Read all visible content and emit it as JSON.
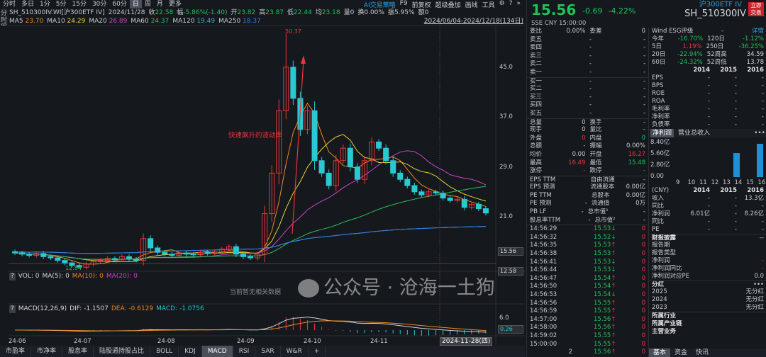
{
  "topbar": {
    "periods": [
      "分时",
      "多日",
      "1分",
      "5分",
      "15分",
      "30分",
      "60分",
      "日",
      "周",
      "月",
      "更多"
    ],
    "active": "日",
    "tools": [
      "AI交易策略",
      "F9",
      "前复权",
      "超级叠加",
      "画线",
      "工具"
    ]
  },
  "sidebar": [
    "分时图",
    "K线图",
    "TICK",
    "成交明细",
    "分价表",
    "深度资料",
    "超级复盘"
  ],
  "sidebar_active": "K线图",
  "info": {
    "symbol": "SH_510300IV.WI[沪300ETF IV]",
    "date": "2024/11/28",
    "close_label": "收",
    "close": "22.58",
    "chg_label": "幅",
    "chg": "-5.86%(-1.40)",
    "open_label": "开",
    "open": "23.82",
    "high_label": "高",
    "high": "23.87",
    "low_label": "低",
    "low": "22.44",
    "avg_label": "均",
    "avg": "23.18",
    "vol_label": "量",
    "vol": "0",
    "turn_label": "换",
    "turn": "0.00%",
    "amp_label": "振",
    "amp": "5.95%",
    "amt_label": "额",
    "amt": "0"
  },
  "ma": [
    {
      "label": "MA5",
      "value": "23.70",
      "color": "#f08a24"
    },
    {
      "label": "MA10",
      "value": "24.29",
      "color": "#e8d23a"
    },
    {
      "label": "MA20",
      "value": "26.89",
      "color": "#c848c8"
    },
    {
      "label": "MA60",
      "value": "24.37",
      "color": "#2dbd5a"
    },
    {
      "label": "MA120",
      "value": "19.49",
      "color": "#2ab7c8"
    },
    {
      "label": "MA250",
      "value": "18.37",
      "color": "#3a7ae0"
    }
  ],
  "range": "2024/06/04-2024/12/18(134日)",
  "annotation": "快速飙升的波动率",
  "chart_data": {
    "type": "candlestick",
    "closes": [
      15.2,
      15.0,
      14.8,
      15.1,
      14.6,
      14.4,
      14.0,
      13.6,
      13.2,
      12.9,
      13.4,
      13.8,
      14.0,
      14.3,
      14.1,
      14.6,
      14.2,
      14.0,
      17.5,
      16.0,
      15.3,
      15.0,
      14.8,
      15.2,
      15.0,
      14.9,
      15.3,
      15.1,
      15.4,
      15.8,
      16.2,
      15.0,
      14.6,
      14.4,
      15.0,
      21.5,
      28.0,
      38.0,
      45.0,
      40.0,
      35.0,
      38.0,
      30.0,
      28.0,
      26.0,
      30.0,
      32.0,
      29.0,
      27.0,
      30.0,
      33.0,
      32.0,
      30.0,
      28.0,
      27.0,
      26.0,
      25.0,
      24.5,
      25.0,
      24.8,
      24.0,
      23.6,
      23.8,
      22.5,
      23.0,
      22.3,
      21.6
    ],
    "max_label": "50.37",
    "min_label": "12.84",
    "max_value": 50.37,
    "min_value": 12.84,
    "yticks": [
      "45.0",
      "37.0",
      "29.0",
      "21.0"
    ],
    "ylim": [
      12.58,
      50.37
    ],
    "last_price": "15.56",
    "bottom_price": "12.58",
    "xticks": [
      "24-06",
      "24-07",
      "24-08",
      "24-09",
      "24-10",
      "24-11"
    ],
    "cursor_date": "2024-11-28(四)",
    "up_color": "#e8363c",
    "down_color": "#2ac8d0"
  },
  "volume": {
    "q": "?",
    "text": "VOL: 0",
    "ma5": "MA(5): 0",
    "ma10": "MA(10): 0",
    "ma20": "MA(20): 0",
    "nodata": "当前暂无相关数据"
  },
  "macd": {
    "q": "?",
    "text": "MACD(12,26,9)",
    "dif": "DIF: -1.1507",
    "dea": "DEA: -0.6129",
    "macd": "MACD: -1.0756",
    "ytop": "6.0",
    "ycur": "0.26"
  },
  "bottom_tabs": [
    "市盈率",
    "市净率",
    "股息率",
    "陆股通持股占比",
    "BOLL",
    "KDJ",
    "MACD",
    "RSI",
    "SAR",
    "W&R",
    "+"
  ],
  "bottom_active": "MACD",
  "quote": {
    "price": "15.56",
    "chg": "-0.69",
    "pct": "-4.22%",
    "name": "沪300ETF IV",
    "code": "SH_510300IV",
    "trade": "立即交易",
    "sse": "SSE  CNY  15:00:00"
  },
  "book": [
    [
      "委比",
      "0.00%",
      "委差",
      "0"
    ],
    [
      "卖五",
      "-",
      "",
      "-"
    ],
    [
      "卖四",
      "-",
      "",
      "-"
    ],
    [
      "卖三",
      "-",
      "",
      "-"
    ],
    [
      "卖二",
      "-",
      "",
      "-"
    ],
    [
      "卖一",
      "-",
      "",
      "-"
    ],
    [
      "买一",
      "-",
      "",
      "-"
    ],
    [
      "买二",
      "-",
      "",
      "-"
    ],
    [
      "买三",
      "-",
      "",
      "-"
    ],
    [
      "买四",
      "-",
      "",
      "-"
    ],
    [
      "买五",
      "-",
      "",
      "-"
    ],
    [
      "总量",
      "0",
      "换手",
      "-"
    ],
    [
      "现手",
      "0",
      "量比",
      "-"
    ],
    [
      "外盘",
      "0",
      "内盘",
      "0"
    ],
    [
      "总额",
      "-",
      "振幅",
      "0.00%"
    ],
    [
      "均价",
      "0.00",
      "开盘",
      "16.27"
    ],
    [
      "最高",
      "16.49",
      "最低",
      "15.48"
    ],
    [
      "涨停",
      "-",
      "跌停",
      "-"
    ],
    [
      "EPS TTM",
      "",
      "自由流通",
      "-"
    ],
    [
      "EPS 预测",
      "",
      "流通股本",
      "0.00亿"
    ],
    [
      "PE TTM",
      "",
      "总股本",
      "0.00亿"
    ],
    [
      "PE 预测",
      "-",
      "流通值",
      "0万"
    ],
    [
      "PB LF",
      "-",
      "总市值¹",
      "-"
    ],
    [
      "股息率TTM",
      "-",
      "总市值²",
      "-"
    ]
  ],
  "ticks": [
    [
      "14:56:29",
      "15.53",
      "down",
      "0"
    ],
    [
      "14:56:32",
      "15.52",
      "down",
      "0"
    ],
    [
      "14:56:35",
      "15.53",
      "up",
      "0"
    ],
    [
      "14:56:38",
      "15.53",
      "up",
      "0"
    ],
    [
      "14:56:41",
      "15.53",
      "down",
      "0"
    ],
    [
      "14:56:44",
      "15.53",
      "down",
      "0"
    ],
    [
      "14:56:47",
      "15.54",
      "up",
      "0"
    ],
    [
      "14:56:50",
      "15.54",
      "up",
      "0"
    ],
    [
      "14:56:53",
      "15.54",
      "down",
      "0"
    ],
    [
      "14:56:56",
      "15.55",
      "up",
      "0"
    ],
    [
      "14:56:59",
      "15.55",
      "up",
      "0"
    ],
    [
      "14:57:00",
      "15.56",
      "up",
      "0"
    ],
    [
      "14:58:00",
      "15.56",
      "up",
      "0"
    ],
    [
      "14:59:02",
      "15.55",
      "up",
      "0"
    ],
    [
      "15:00:00",
      "15.55",
      "up",
      "0"
    ],
    [
      "2",
      "15.56",
      "up",
      "0"
    ]
  ],
  "esg": {
    "label": "Wind ESG评级",
    "value": "-",
    "detail": "详情"
  },
  "perf": [
    [
      "今年",
      "-16.70%",
      "120日",
      "-1.12%"
    ],
    [
      "5日",
      "1.19%",
      "250日",
      "-36.25%"
    ],
    [
      "20日",
      "-22.94%",
      "52周高",
      "34.59"
    ],
    [
      "60日",
      "-24.32%",
      "52周低",
      "13.78"
    ]
  ],
  "years": [
    "",
    "2014",
    "2015",
    "2016"
  ],
  "fin": [
    [
      "EPS",
      "-",
      "-",
      "-"
    ],
    [
      "BPS",
      "-",
      "-",
      "-"
    ],
    [
      "ROE",
      "-",
      "-",
      "-"
    ],
    [
      "ROA",
      "-",
      "-",
      "-"
    ],
    [
      "毛利率",
      "-",
      "-",
      "-"
    ],
    [
      "净利率",
      "-",
      "-",
      "-"
    ],
    [
      "负债率",
      "-",
      "-",
      "-"
    ]
  ],
  "fin_tabs": [
    "净利润",
    "营业总收入",
    "•••"
  ],
  "fin_chart": {
    "yticks": [
      "8.40亿",
      "5.60亿",
      "2.80亿",
      "0.00"
    ],
    "x": [
      "9",
      "10",
      "11",
      "12",
      "13",
      "14",
      "15",
      "16"
    ],
    "values": [
      0,
      0,
      0,
      0,
      0,
      6.01,
      0,
      8.26
    ],
    "ymax": 8.4,
    "color": "#1f8fd6"
  },
  "fin2_head": [
    "(CNY)",
    "2014",
    "2015",
    "2016"
  ],
  "fin2": [
    [
      "收入",
      "-",
      "-",
      "13.3亿"
    ],
    [
      "同比",
      "-",
      "-",
      "-"
    ],
    [
      "净利润",
      "6.01亿",
      "-",
      "8.26亿"
    ],
    [
      "同比",
      "-",
      "-",
      "-"
    ],
    [
      "PE",
      "-",
      "-",
      "-"
    ]
  ],
  "report": {
    "title": "财报披露",
    "more": "--",
    "rows": [
      [
        "报告期",
        ""
      ],
      [
        "报告类型",
        ""
      ],
      [
        "净利润",
        "-"
      ],
      [
        "净利润同比",
        "-"
      ],
      [
        "净利润对应PE",
        "0.0"
      ]
    ]
  },
  "dividend": {
    "title": "分红",
    "more": "•••",
    "rows": [
      [
        "2025",
        "无分红"
      ],
      [
        "2024",
        "无分红"
      ],
      [
        "2023",
        "无分红"
      ]
    ]
  },
  "industry": [
    "所属行业",
    "所属产业链",
    "主营业务"
  ],
  "right_tabs": [
    "基本",
    "资金",
    "快讯"
  ],
  "watermark": "公众号 · 沧海一土狗"
}
